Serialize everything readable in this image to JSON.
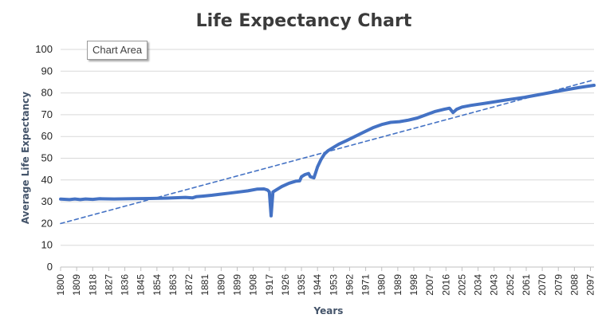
{
  "tooltip": "Chart Area",
  "chart_data": {
    "type": "line",
    "title": "Life Expectancy Chart",
    "xlabel": "Years",
    "ylabel": "Average Life Expectancy",
    "ylim": [
      0,
      100
    ],
    "yticks": [
      0,
      10,
      20,
      30,
      40,
      50,
      60,
      70,
      80,
      90,
      100
    ],
    "xlim": [
      1800,
      2099
    ],
    "xticks": [
      1800,
      1809,
      1818,
      1827,
      1836,
      1845,
      1854,
      1863,
      1872,
      1881,
      1890,
      1899,
      1908,
      1917,
      1926,
      1935,
      1944,
      1953,
      1962,
      1971,
      1980,
      1989,
      1998,
      2007,
      2016,
      2025,
      2034,
      2043,
      2052,
      2061,
      2070,
      2079,
      2088,
      2097
    ],
    "grid": true,
    "legend": "none",
    "series": [
      {
        "style": "solid",
        "color": "#4472c4",
        "points": [
          [
            1800,
            31.2
          ],
          [
            1805,
            31.0
          ],
          [
            1808,
            31.3
          ],
          [
            1811,
            31.0
          ],
          [
            1814,
            31.3
          ],
          [
            1818,
            31.1
          ],
          [
            1822,
            31.4
          ],
          [
            1830,
            31.3
          ],
          [
            1840,
            31.4
          ],
          [
            1850,
            31.5
          ],
          [
            1860,
            31.7
          ],
          [
            1870,
            32.0
          ],
          [
            1874,
            31.8
          ],
          [
            1876,
            32.3
          ],
          [
            1880,
            32.6
          ],
          [
            1885,
            33.0
          ],
          [
            1890,
            33.5
          ],
          [
            1895,
            34.0
          ],
          [
            1900,
            34.5
          ],
          [
            1905,
            35.0
          ],
          [
            1910,
            35.8
          ],
          [
            1914,
            35.9
          ],
          [
            1916,
            35.4
          ],
          [
            1917,
            34.5
          ],
          [
            1918,
            23.5
          ],
          [
            1919,
            34.5
          ],
          [
            1920,
            35.0
          ],
          [
            1924,
            37.0
          ],
          [
            1928,
            38.5
          ],
          [
            1932,
            39.5
          ],
          [
            1934,
            39.6
          ],
          [
            1935,
            41.5
          ],
          [
            1937,
            42.5
          ],
          [
            1939,
            43.0
          ],
          [
            1940,
            41.5
          ],
          [
            1942,
            41.0
          ],
          [
            1943,
            43.5
          ],
          [
            1944,
            46.0
          ],
          [
            1946,
            49.5
          ],
          [
            1948,
            52.0
          ],
          [
            1950,
            53.5
          ],
          [
            1953,
            55.0
          ],
          [
            1956,
            56.5
          ],
          [
            1960,
            58.0
          ],
          [
            1965,
            60.0
          ],
          [
            1970,
            62.0
          ],
          [
            1975,
            64.0
          ],
          [
            1980,
            65.5
          ],
          [
            1985,
            66.5
          ],
          [
            1990,
            66.8
          ],
          [
            1995,
            67.5
          ],
          [
            2000,
            68.5
          ],
          [
            2005,
            70.0
          ],
          [
            2010,
            71.5
          ],
          [
            2015,
            72.5
          ],
          [
            2018,
            73.0
          ],
          [
            2020,
            71.0
          ],
          [
            2022,
            72.5
          ],
          [
            2025,
            73.5
          ],
          [
            2030,
            74.3
          ],
          [
            2040,
            75.5
          ],
          [
            2050,
            76.8
          ],
          [
            2060,
            78.0
          ],
          [
            2070,
            79.5
          ],
          [
            2080,
            81.0
          ],
          [
            2090,
            82.4
          ],
          [
            2099,
            83.5
          ]
        ]
      },
      {
        "style": "dashed",
        "color": "#4472c4",
        "points": [
          [
            1800,
            20
          ],
          [
            2099,
            86
          ]
        ]
      }
    ]
  }
}
